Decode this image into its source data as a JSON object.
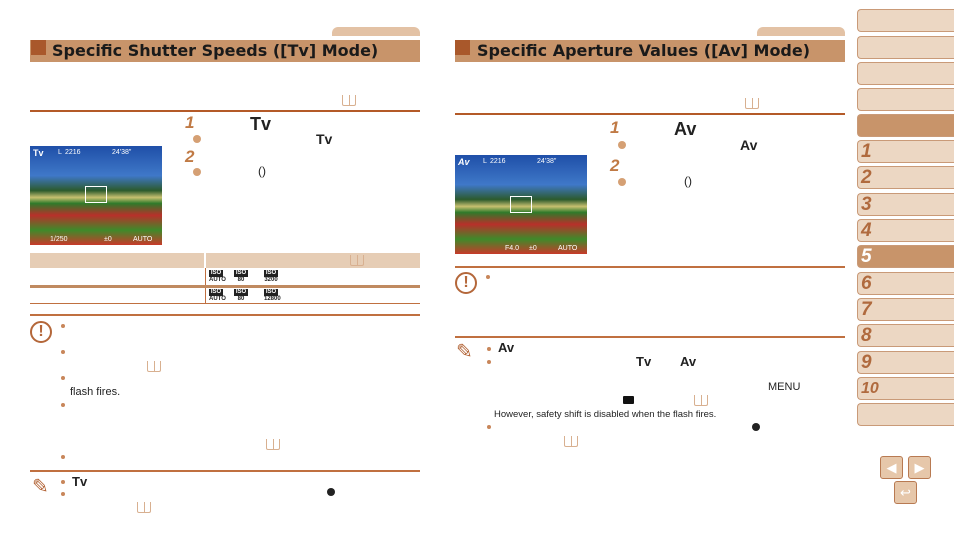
{
  "left": {
    "title": "Specific Shutter Speeds ([Tv] Mode)",
    "step1": "1",
    "step1_mode": "Tv",
    "step1_bullet_mode": "Tv",
    "step2": "2",
    "step2_bullet": "()",
    "photo": {
      "mode": "Tv",
      "size": "L",
      "shots": "2216",
      "time": "24'38\"",
      "shutter": "1/250",
      "exposure": "±0",
      "iso": "AUTO"
    },
    "table": {
      "rows": [
        {
          "iso": [
            "AUTO",
            "80",
            "3200"
          ]
        },
        {
          "iso": [
            "AUTO",
            "80",
            "12800"
          ]
        }
      ]
    },
    "caution_text": "flash fires.",
    "note_mode": "Tv"
  },
  "right": {
    "title": "Specific Aperture Values ([Av] Mode)",
    "step1": "1",
    "step1_mode": "Av",
    "step1_bullet_mode": "Av",
    "step2": "2",
    "step2_bullet": "()",
    "photo": {
      "mode": "Av",
      "size": "L",
      "shots": "2216",
      "time": "24'38\"",
      "aperture": "F4.0",
      "exposure": "±0",
      "iso": "AUTO"
    },
    "note_mode": "Av",
    "note_tv": "Tv",
    "note_av": "Av",
    "menu": "MENU",
    "safety_text": "However, safety shift is disabled when the flash fires."
  },
  "sidebar": {
    "chapters": [
      "1",
      "2",
      "3",
      "4",
      "5",
      "6",
      "7",
      "8",
      "9",
      "10"
    ],
    "active": "5"
  },
  "colors": {
    "accent": "#c8946a",
    "dark": "#a9582b",
    "light": "#ecd7c3"
  }
}
